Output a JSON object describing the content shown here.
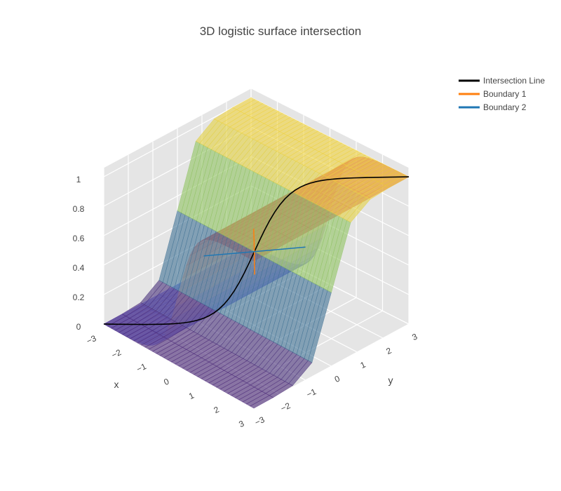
{
  "chart_data": {
    "type": "surface3d",
    "title": "3D logistic surface intersection",
    "x": {
      "label": "x",
      "range": [
        -3,
        3
      ],
      "ticks": [
        "−3",
        "−2",
        "−1",
        "0",
        "1",
        "2",
        "3"
      ]
    },
    "y": {
      "label": "y",
      "range": [
        -3,
        3
      ],
      "ticks": [
        "−3",
        "−2",
        "−1",
        "0",
        "1",
        "2",
        "3"
      ]
    },
    "z": {
      "label": "",
      "range": [
        0,
        1
      ],
      "ticks": [
        "0",
        "0.2",
        "0.4",
        "0.6",
        "0.8",
        "1"
      ]
    },
    "surfaces": [
      {
        "formula": "z = 1 / (1 + exp(-3x))",
        "colorscale": "blue-to-red",
        "opacity": 0.5
      },
      {
        "formula": "z = 1 / (1 + exp(-3y))",
        "colorscale": "purple-green-yellow",
        "opacity": 0.5
      }
    ],
    "series": [
      {
        "name": "Intersection Line",
        "color": "#000000",
        "points": [
          [
            -3,
            -3,
            0.0001
          ],
          [
            -2,
            -2,
            0.0025
          ],
          [
            -1,
            -1,
            0.047
          ],
          [
            -0.5,
            -0.5,
            0.18
          ],
          [
            0,
            0,
            0.5
          ],
          [
            0.5,
            0.5,
            0.82
          ],
          [
            1,
            1,
            0.953
          ],
          [
            2,
            2,
            0.9975
          ],
          [
            3,
            3,
            0.9999
          ]
        ]
      },
      {
        "name": "Boundary 1",
        "color": "#ff7f0e",
        "points": [
          [
            -1,
            1,
            0.47
          ],
          [
            0,
            0,
            0.5
          ],
          [
            1,
            -1,
            0.53
          ]
        ]
      },
      {
        "name": "Boundary 2",
        "color": "#1f77b4",
        "points": [
          [
            -1,
            -1,
            0.47
          ],
          [
            0,
            0,
            0.5
          ],
          [
            1,
            1,
            0.53
          ]
        ]
      }
    ],
    "legend_position": "top-right",
    "background": "#e5e5e5",
    "grid": true
  }
}
